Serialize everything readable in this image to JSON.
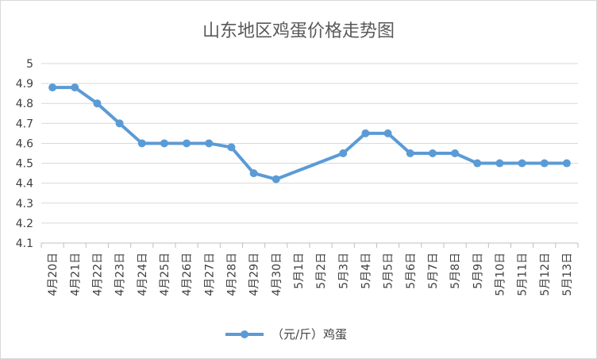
{
  "chart_data": {
    "type": "line",
    "title": "山东地区鸡蛋价格走势图",
    "categories": [
      "4月20日",
      "4月21日",
      "4月22日",
      "4月23日",
      "4月24日",
      "4月25日",
      "4月26日",
      "4月27日",
      "4月28日",
      "4月29日",
      "4月30日",
      "5月1日",
      "5月2日",
      "5月3日",
      "5月4日",
      "5月5日",
      "5月6日",
      "5月7日",
      "5月8日",
      "5月9日",
      "5月10日",
      "5月11日",
      "5月12日",
      "5月13日"
    ],
    "series": [
      {
        "name": "（元/斤）鸡蛋",
        "color": "#5b9bd5",
        "values": [
          4.88,
          4.88,
          4.8,
          4.7,
          4.6,
          4.6,
          4.6,
          4.6,
          4.58,
          4.45,
          4.42,
          null,
          null,
          4.55,
          4.65,
          4.65,
          4.55,
          4.55,
          4.55,
          4.5,
          4.5,
          4.5,
          4.5,
          4.5
        ]
      }
    ],
    "ylim": [
      4.1,
      5.0
    ],
    "yticks": [
      "4.1",
      "4.2",
      "4.3",
      "4.4",
      "4.5",
      "4.6",
      "4.7",
      "4.8",
      "4.9",
      "5"
    ],
    "grid": true,
    "legend": "bottom",
    "connect_gaps": true
  }
}
